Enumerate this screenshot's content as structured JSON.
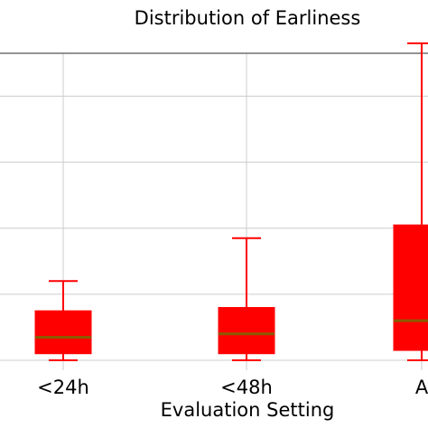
{
  "chart_data": {
    "type": "box",
    "title": "Distribution of Earliness",
    "xlabel": "Evaluation Setting",
    "ylabel": "",
    "categories": [
      "<24h",
      "<48h",
      "A"
    ],
    "ylim": [
      -1.5,
      46.5
    ],
    "grid": true,
    "colors": {
      "box": "#ff0000",
      "median": "#8b5a00",
      "grid": "#cccccc",
      "axis": "#555555"
    },
    "boxes": [
      {
        "category": "<24h",
        "whisker_low": 0.0,
        "q1": 1.0,
        "median": 3.5,
        "q3": 7.5,
        "whisker_high": 12.0
      },
      {
        "category": "<48h",
        "whisker_low": 0.0,
        "q1": 1.0,
        "median": 4.0,
        "q3": 8.0,
        "whisker_high": 18.5
      },
      {
        "category": "A",
        "whisker_low": 0.0,
        "q1": 1.5,
        "median": 6.0,
        "q3": 20.5,
        "whisker_high": 48.0
      }
    ]
  }
}
